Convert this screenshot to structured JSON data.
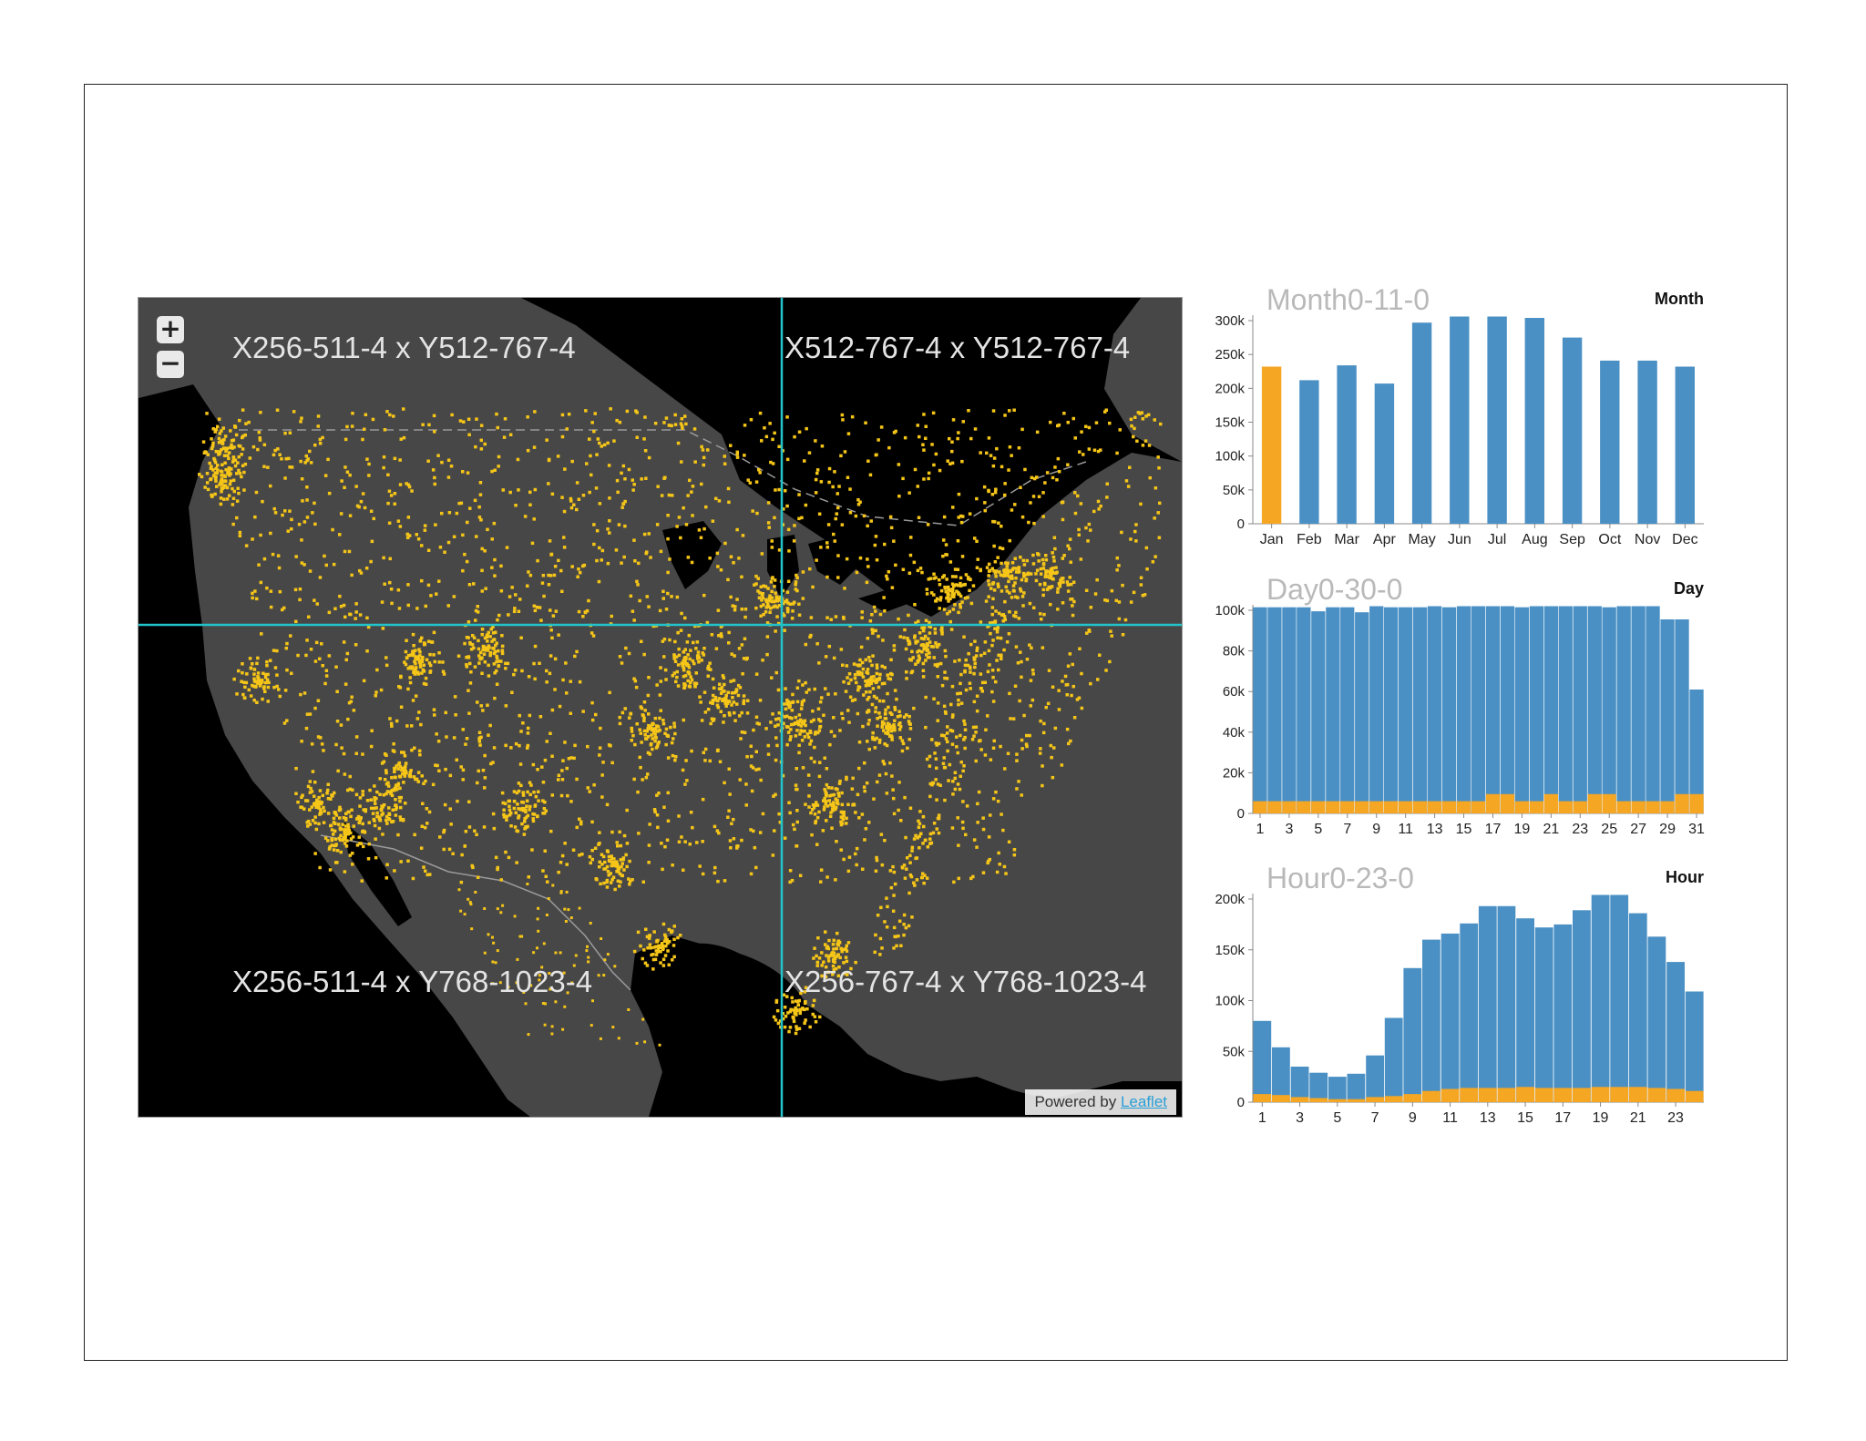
{
  "map": {
    "tiles": [
      {
        "label": "X256-511-4 x Y512-767-4"
      },
      {
        "label": "X512-767-4 x Y512-767-4"
      },
      {
        "label": "X256-511-4 x Y768-1023-4"
      },
      {
        "label": "X256-767-4 x Y768-1023-4"
      }
    ],
    "zoom_in_label": "+",
    "zoom_out_label": "−",
    "attribution_prefix": "Powered by",
    "attribution_link": "Leaflet",
    "colors": {
      "land": "#474747",
      "water": "#000000",
      "points": "#f5c518",
      "grid": "#22c4cc"
    }
  },
  "chart_data": [
    {
      "type": "bar",
      "title": "Month0-11-0",
      "corner_label": "Month",
      "categories": [
        "Jan",
        "Feb",
        "Mar",
        "Apr",
        "May",
        "Jun",
        "Jul",
        "Aug",
        "Sep",
        "Oct",
        "Nov",
        "Dec"
      ],
      "values": [
        232000,
        212000,
        234000,
        207000,
        297000,
        311000,
        318000,
        304000,
        275000,
        241000,
        241000,
        232000
      ],
      "highlight_index": 0,
      "yticks": [
        "0",
        "50k",
        "100k",
        "150k",
        "200k",
        "250k",
        "300k"
      ],
      "ylim": [
        0,
        300000
      ],
      "colors": {
        "bar": "#4a90c4",
        "highlight": "#f5a623"
      }
    },
    {
      "type": "bar",
      "title": "Day0-30-0",
      "corner_label": "Day",
      "categories": [
        "1",
        "2",
        "3",
        "4",
        "5",
        "6",
        "7",
        "8",
        "9",
        "10",
        "11",
        "12",
        "13",
        "14",
        "15",
        "16",
        "17",
        "18",
        "19",
        "20",
        "21",
        "22",
        "23",
        "24",
        "25",
        "26",
        "27",
        "28",
        "29",
        "30",
        "31"
      ],
      "xtick_labels": [
        "1",
        "3",
        "5",
        "7",
        "9",
        "11",
        "13",
        "15",
        "17",
        "19",
        "21",
        "23",
        "25",
        "27",
        "29",
        "31"
      ],
      "series": [
        {
          "values": [
            101500,
            101500,
            101500,
            101500,
            99500,
            101500,
            101500,
            99000,
            103000,
            101500,
            101500,
            101500,
            103000,
            101500,
            102500,
            102500,
            102500,
            102500,
            101500,
            102500,
            102500,
            102500,
            102500,
            102500,
            101500,
            102500,
            102500,
            102500,
            95500,
            95500,
            61000
          ]
        },
        {
          "values": [
            6000,
            6000,
            6000,
            6000,
            6000,
            6000,
            6000,
            6000,
            6000,
            6000,
            6000,
            6000,
            6000,
            6000,
            6000,
            6000,
            9500,
            9500,
            6000,
            6000,
            9500,
            6000,
            6000,
            9500,
            9500,
            6000,
            6000,
            6000,
            6000,
            9500,
            9500
          ]
        }
      ],
      "yticks": [
        "0",
        "20k",
        "40k",
        "60k",
        "80k",
        "100k"
      ],
      "ylim": [
        0,
        100000
      ],
      "colors": {
        "bar": "#4a90c4",
        "highlight": "#f5a623"
      }
    },
    {
      "type": "bar",
      "title": "Hour0-23-0",
      "corner_label": "Hour",
      "categories": [
        "1",
        "2",
        "3",
        "4",
        "5",
        "6",
        "7",
        "8",
        "9",
        "10",
        "11",
        "12",
        "13",
        "14",
        "15",
        "16",
        "17",
        "18",
        "19",
        "20",
        "21",
        "22",
        "23",
        "24"
      ],
      "xtick_labels": [
        "1",
        "3",
        "5",
        "7",
        "9",
        "11",
        "13",
        "15",
        "17",
        "19",
        "21",
        "23"
      ],
      "series": [
        {
          "values": [
            80000,
            54000,
            35000,
            29000,
            25000,
            28000,
            46000,
            83000,
            132000,
            160000,
            166000,
            176000,
            193000,
            193000,
            181000,
            172000,
            175000,
            189000,
            207000,
            207000,
            186000,
            163000,
            138000,
            109000
          ]
        },
        {
          "values": [
            8000,
            7000,
            5000,
            4000,
            3000,
            3000,
            5000,
            6000,
            8000,
            11000,
            13000,
            14000,
            14000,
            14000,
            15000,
            14000,
            14000,
            14000,
            15000,
            15000,
            15000,
            14000,
            13000,
            11000
          ]
        }
      ],
      "yticks": [
        "0",
        "50k",
        "100k",
        "150k",
        "200k"
      ],
      "ylim": [
        0,
        200000
      ],
      "colors": {
        "bar": "#4a90c4",
        "highlight": "#f5a623"
      }
    }
  ]
}
